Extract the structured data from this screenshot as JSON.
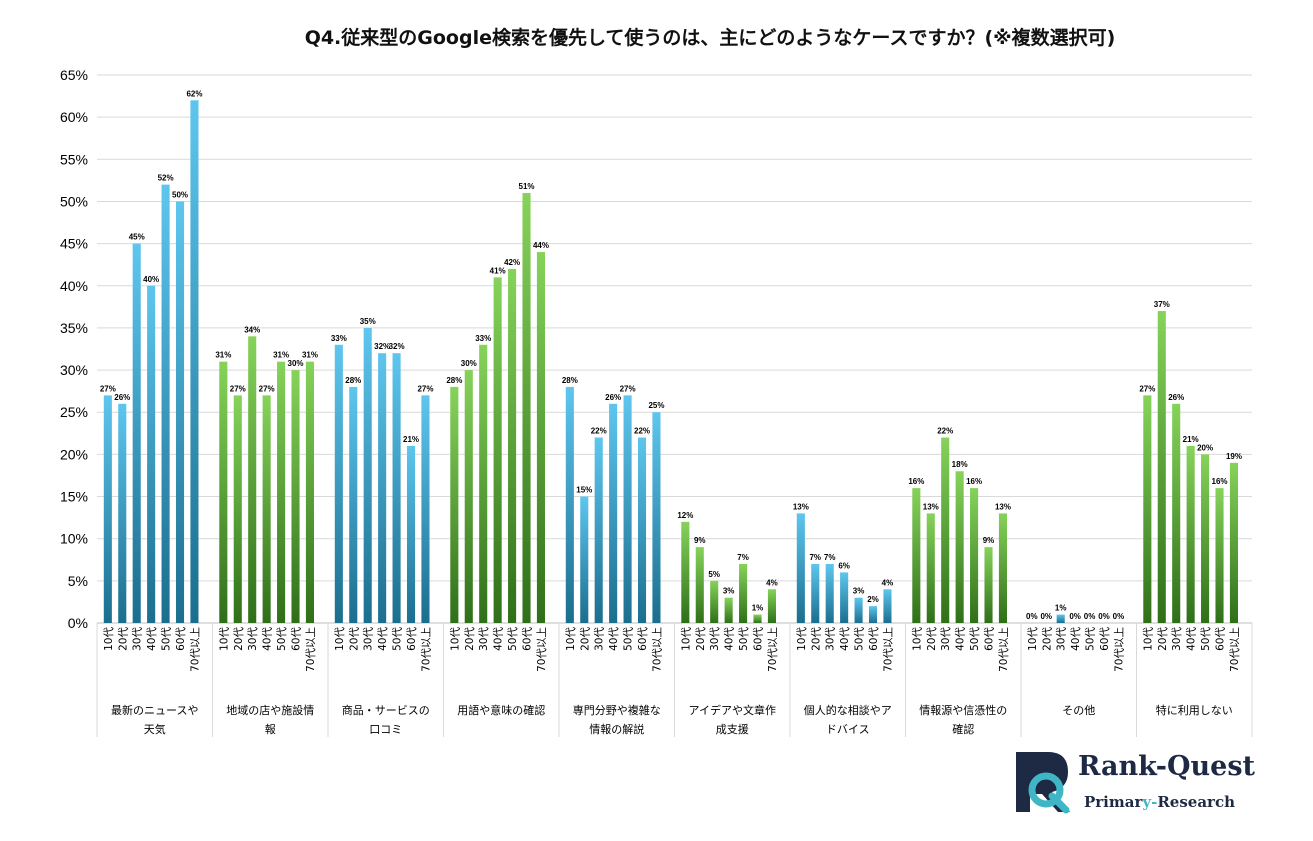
{
  "chart_data": {
    "type": "bar",
    "title": "Q4.従来型のGoogle検索を優先して使うのは、主にどのようなケースですか？(※複数選択可)",
    "ylim": [
      0,
      65
    ],
    "yticks": [
      "0%",
      "5%",
      "10%",
      "15%",
      "20%",
      "25%",
      "30%",
      "35%",
      "40%",
      "45%",
      "50%",
      "55%",
      "60%",
      "65%"
    ],
    "grid": true,
    "legend": "none",
    "age_labels": [
      "10代",
      "20代",
      "30代",
      "40代",
      "50代",
      "60代",
      "70代以上"
    ],
    "colors": {
      "blue_top": "#5ec6ee",
      "blue_bottom": "#1b6e8e",
      "green_top": "#86d35a",
      "green_bottom": "#2f6f19"
    },
    "groups": [
      {
        "label": [
          "最新のニュースや",
          "天気"
        ],
        "color": "blue",
        "values": [
          27,
          26,
          45,
          40,
          52,
          50,
          62
        ]
      },
      {
        "label": [
          "地域の店や施設情",
          "報"
        ],
        "color": "green",
        "values": [
          31,
          27,
          34,
          27,
          31,
          30,
          31
        ]
      },
      {
        "label": [
          "商品・サービスの",
          "口コミ"
        ],
        "color": "blue",
        "values": [
          33,
          28,
          35,
          32,
          32,
          21,
          27
        ]
      },
      {
        "label": [
          "用語や意味の確認"
        ],
        "color": "green",
        "values": [
          28,
          30,
          33,
          41,
          42,
          51,
          44
        ]
      },
      {
        "label": [
          "専門分野や複雑な",
          "情報の解説"
        ],
        "color": "blue",
        "values": [
          28,
          15,
          22,
          26,
          27,
          22,
          25
        ]
      },
      {
        "label": [
          "アイデアや文章作",
          "成支援"
        ],
        "color": "green",
        "values": [
          12,
          9,
          5,
          3,
          7,
          1,
          4
        ]
      },
      {
        "label": [
          "個人的な相談やア",
          "ドバイス"
        ],
        "color": "blue",
        "values": [
          13,
          7,
          7,
          6,
          3,
          2,
          4
        ]
      },
      {
        "label": [
          "情報源や信憑性の",
          "確認"
        ],
        "color": "green",
        "values": [
          16,
          13,
          22,
          18,
          16,
          9,
          13
        ]
      },
      {
        "label": [
          "その他"
        ],
        "color": "blue",
        "values": [
          0,
          0,
          1,
          0,
          0,
          0,
          0
        ]
      },
      {
        "label": [
          "特に利用しない"
        ],
        "color": "green",
        "values": [
          27,
          37,
          26,
          21,
          20,
          16,
          19
        ]
      }
    ]
  },
  "logo": {
    "name": "Rank-Quest",
    "sub_parts": [
      "Primar",
      "y-",
      "Research"
    ],
    "colors": {
      "navy": "#1e2a44",
      "teal": "#3fb6c6"
    }
  }
}
